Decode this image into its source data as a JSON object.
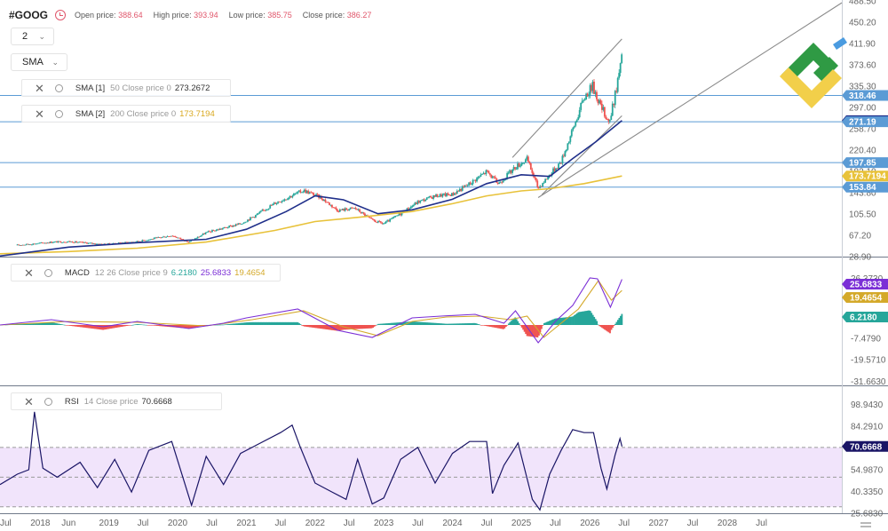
{
  "symbol": "#GOOG",
  "ohlc": {
    "open_label": "Open price:",
    "open_value": "388.64",
    "high_label": "High price:",
    "high_value": "393.94",
    "low_label": "Low price:",
    "low_value": "385.75",
    "close_label": "Close price:",
    "close_value": "386.27"
  },
  "controls": {
    "interval_value": "2",
    "indicator_value": "SMA"
  },
  "colors": {
    "up": "#26a69a",
    "down": "#ef5350",
    "sma50": "#1f2f8a",
    "sma200": "#e8c23a",
    "macd_line": "#7b2fd6",
    "signal_line": "#d4a92a",
    "rsi_line": "#1a1566",
    "rsi_band": "#f1e4fb",
    "channel": "#8a8a8a",
    "hline": "#5b9bd5"
  },
  "legends": {
    "sma1": {
      "name": "SMA [1]",
      "params": "50 Close price 0",
      "value": "273.2672"
    },
    "sma2": {
      "name": "SMA [2]",
      "params": "200 Close price 0",
      "value": "173.7194"
    },
    "macd": {
      "name": "MACD",
      "params": "12 26 Close price 9",
      "v1": "6.2180",
      "v2": "25.6833",
      "v3": "19.4654"
    },
    "rsi": {
      "name": "RSI",
      "params": "14 Close price",
      "value": "70.6668"
    }
  },
  "icons": [
    "clock-icon",
    "chevron-down-icon",
    "close-icon",
    "gear-icon",
    "logo-icon",
    "axis-settings-icon"
  ],
  "chart_data": [
    {
      "type": "candlestick",
      "pane": "price",
      "title": "#GOOG",
      "x_range": [
        "2017-06-01",
        "2029-09-01"
      ],
      "ylim": [
        28.9,
        490
      ],
      "y_ticks": [
        "28.90",
        "67.20",
        "105.50",
        "143.80",
        "182.10",
        "220.40",
        "258.70",
        "297.00",
        "335.30",
        "373.60",
        "411.90",
        "450.20",
        "488.50"
      ],
      "x_ticks": [
        "Jul",
        "2018",
        "Jun",
        "2019",
        "Jul",
        "2020",
        "Jul",
        "2021",
        "Jul",
        "2022",
        "Jul",
        "2023",
        "Jul",
        "2024",
        "Jul",
        "2025",
        "Jul",
        "2026",
        "Jul",
        "2027",
        "Jul",
        "2028",
        "Jul"
      ],
      "price_path": [
        [
          "2017-06-01",
          47
        ],
        [
          "2017-12-01",
          52
        ],
        [
          "2018-03-01",
          55
        ],
        [
          "2018-06-01",
          56
        ],
        [
          "2018-12-01",
          51
        ],
        [
          "2019-06-01",
          56
        ],
        [
          "2019-12-01",
          67
        ],
        [
          "2020-03-01",
          55
        ],
        [
          "2020-06-01",
          72
        ],
        [
          "2020-12-01",
          88
        ],
        [
          "2021-03-01",
          105
        ],
        [
          "2021-06-01",
          125
        ],
        [
          "2021-11-01",
          148
        ],
        [
          "2022-02-01",
          135
        ],
        [
          "2022-05-01",
          112
        ],
        [
          "2022-08-01",
          116
        ],
        [
          "2022-11-01",
          94
        ],
        [
          "2023-01-01",
          88
        ],
        [
          "2023-04-01",
          106
        ],
        [
          "2023-07-01",
          127
        ],
        [
          "2023-10-01",
          138
        ],
        [
          "2024-01-01",
          141
        ],
        [
          "2024-04-01",
          160
        ],
        [
          "2024-07-01",
          182
        ],
        [
          "2024-09-01",
          160
        ],
        [
          "2024-12-01",
          190
        ],
        [
          "2025-02-01",
          204
        ],
        [
          "2025-04-01",
          152
        ],
        [
          "2025-06-01",
          176
        ],
        [
          "2025-08-01",
          200
        ],
        [
          "2025-10-01",
          256
        ],
        [
          "2025-12-01",
          315
        ],
        [
          "2026-01-15",
          336
        ],
        [
          "2026-03-01",
          298
        ],
        [
          "2026-04-15",
          270
        ],
        [
          "2026-05-15",
          320
        ],
        [
          "2026-06-20",
          386
        ]
      ],
      "sma50": [
        [
          "2017-06-01",
          30
        ],
        [
          "2018-06-01",
          46
        ],
        [
          "2019-06-01",
          54
        ],
        [
          "2020-06-01",
          60
        ],
        [
          "2021-01-01",
          78
        ],
        [
          "2021-08-01",
          110
        ],
        [
          "2022-01-01",
          138
        ],
        [
          "2022-06-01",
          131
        ],
        [
          "2022-12-01",
          106
        ],
        [
          "2023-06-01",
          113
        ],
        [
          "2024-01-01",
          132
        ],
        [
          "2024-07-01",
          160
        ],
        [
          "2025-01-01",
          176
        ],
        [
          "2025-06-01",
          173
        ],
        [
          "2025-10-01",
          205
        ],
        [
          "2026-02-01",
          235
        ],
        [
          "2026-06-20",
          273.2672
        ]
      ],
      "sma200": [
        [
          "2017-06-01",
          34
        ],
        [
          "2018-06-01",
          38
        ],
        [
          "2019-06-01",
          44
        ],
        [
          "2020-06-01",
          55
        ],
        [
          "2021-06-01",
          76
        ],
        [
          "2022-01-01",
          92
        ],
        [
          "2022-10-01",
          101
        ],
        [
          "2023-06-01",
          110
        ],
        [
          "2024-01-01",
          124
        ],
        [
          "2024-07-01",
          138
        ],
        [
          "2025-01-01",
          147
        ],
        [
          "2025-06-01",
          151
        ],
        [
          "2025-12-01",
          160
        ],
        [
          "2026-06-20",
          173.7194
        ]
      ],
      "horizontal_lines": [
        318.46,
        271.19,
        197.85,
        153.84
      ],
      "channel_lines": [
        [
          [
            "2024-11-15",
            207
          ],
          [
            "2026-06-20",
            420
          ]
        ],
        [
          [
            "2025-04-20",
            140
          ],
          [
            "2026-06-20",
            282
          ]
        ],
        [
          [
            "2025-04-01",
            135
          ],
          [
            "2029-09-01",
            485
          ]
        ]
      ],
      "price_labels": [
        "318.46",
        "273.2672",
        "271.19",
        "197.85",
        "173.7194",
        "153.84"
      ]
    },
    {
      "type": "macd",
      "pane": "macd",
      "ylim": [
        -35,
        30
      ],
      "y_ticks": [
        "26.3730",
        "-7.4790",
        "-19.5710",
        "-31.6630"
      ],
      "macd": [
        [
          "2017-06-01",
          0
        ],
        [
          "2018-03-01",
          3
        ],
        [
          "2018-12-01",
          -1
        ],
        [
          "2019-06-01",
          2
        ],
        [
          "2020-03-01",
          -2
        ],
        [
          "2020-09-01",
          1
        ],
        [
          "2021-01-01",
          4
        ],
        [
          "2021-10-01",
          9
        ],
        [
          "2022-05-01",
          -3
        ],
        [
          "2022-11-01",
          -7
        ],
        [
          "2023-06-01",
          4
        ],
        [
          "2023-11-01",
          5
        ],
        [
          "2024-05-01",
          6
        ],
        [
          "2024-10-01",
          1
        ],
        [
          "2024-12-01",
          8
        ],
        [
          "2025-04-01",
          -10
        ],
        [
          "2025-07-01",
          2
        ],
        [
          "2025-10-01",
          11
        ],
        [
          "2026-01-01",
          26.5
        ],
        [
          "2026-02-10",
          26
        ],
        [
          "2026-04-20",
          10
        ],
        [
          "2026-06-20",
          25.6833
        ]
      ],
      "signal": [
        [
          "2017-06-01",
          0
        ],
        [
          "2018-06-01",
          2
        ],
        [
          "2019-06-01",
          1.5
        ],
        [
          "2020-06-01",
          -0.5
        ],
        [
          "2021-02-01",
          3
        ],
        [
          "2021-11-01",
          8
        ],
        [
          "2022-06-01",
          -1
        ],
        [
          "2022-12-01",
          -6
        ],
        [
          "2023-06-01",
          2
        ],
        [
          "2023-12-01",
          4.5
        ],
        [
          "2024-06-01",
          5
        ],
        [
          "2024-11-01",
          3
        ],
        [
          "2025-02-01",
          5
        ],
        [
          "2025-05-01",
          -7
        ],
        [
          "2025-08-01",
          1
        ],
        [
          "2025-11-01",
          9
        ],
        [
          "2026-02-15",
          25
        ],
        [
          "2026-04-25",
          14
        ],
        [
          "2026-06-20",
          19.4654
        ]
      ],
      "histogram_last": 6.218,
      "value_labels": [
        "25.6833",
        "19.4654",
        "6.2180"
      ]
    },
    {
      "type": "rsi",
      "pane": "rsi",
      "ylim": [
        25.7,
        110
      ],
      "y_ticks": [
        "98.9430",
        "84.2910",
        "70.6668",
        "54.9870",
        "40.3350",
        "25.6830"
      ],
      "bands": [
        70,
        30
      ],
      "mid": 50,
      "rsi": [
        [
          "2017-06-01",
          45
        ],
        [
          "2017-09-01",
          52
        ],
        [
          "2017-11-01",
          55
        ],
        [
          "2017-12-01",
          94
        ],
        [
          "2018-01-15",
          56
        ],
        [
          "2018-04-01",
          50
        ],
        [
          "2018-08-01",
          60
        ],
        [
          "2018-11-01",
          43
        ],
        [
          "2019-02-01",
          62
        ],
        [
          "2019-05-01",
          40
        ],
        [
          "2019-08-01",
          68
        ],
        [
          "2019-12-01",
          74
        ],
        [
          "2020-03-15",
          31
        ],
        [
          "2020-06-01",
          64
        ],
        [
          "2020-09-01",
          45
        ],
        [
          "2020-12-01",
          66
        ],
        [
          "2021-03-01",
          72
        ],
        [
          "2021-07-01",
          80
        ],
        [
          "2021-09-01",
          85
        ],
        [
          "2021-10-15",
          70
        ],
        [
          "2022-01-01",
          46
        ],
        [
          "2022-04-01",
          40
        ],
        [
          "2022-06-15",
          35
        ],
        [
          "2022-08-15",
          62
        ],
        [
          "2022-11-01",
          32
        ],
        [
          "2023-01-01",
          36
        ],
        [
          "2023-04-01",
          62
        ],
        [
          "2023-07-01",
          70
        ],
        [
          "2023-10-01",
          46
        ],
        [
          "2024-01-01",
          66
        ],
        [
          "2024-04-01",
          74
        ],
        [
          "2024-07-01",
          74
        ],
        [
          "2024-08-01",
          39
        ],
        [
          "2024-10-01",
          58
        ],
        [
          "2024-12-15",
          73
        ],
        [
          "2025-03-01",
          35
        ],
        [
          "2025-04-10",
          28
        ],
        [
          "2025-06-01",
          52
        ],
        [
          "2025-08-01",
          68
        ],
        [
          "2025-10-01",
          82
        ],
        [
          "2025-12-01",
          80
        ],
        [
          "2026-01-20",
          80
        ],
        [
          "2026-03-01",
          56
        ],
        [
          "2026-04-01",
          42
        ],
        [
          "2026-05-15",
          65
        ],
        [
          "2026-06-10",
          76
        ],
        [
          "2026-06-20",
          70.6668
        ]
      ]
    }
  ]
}
